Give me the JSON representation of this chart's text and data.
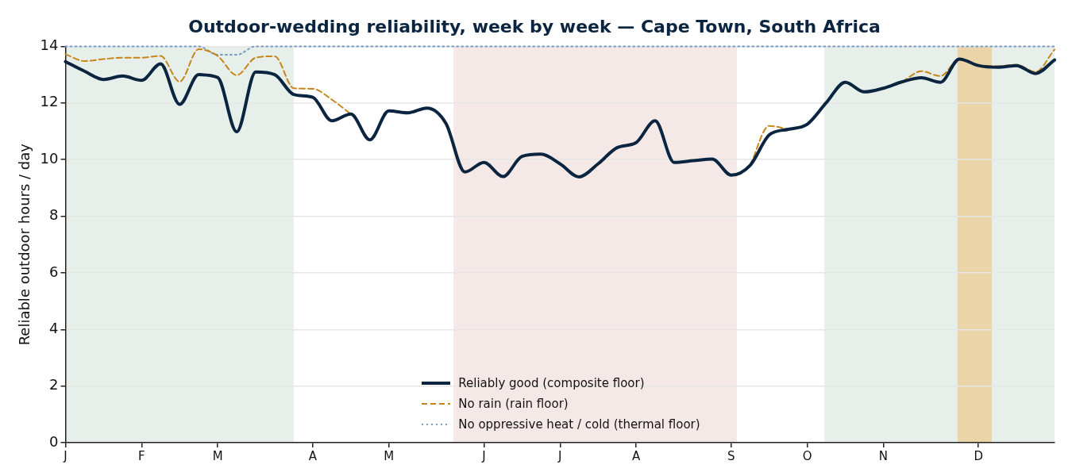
{
  "chart_data": {
    "type": "line",
    "title": "Outdoor-wedding reliability, week by week — Cape Town, South Africa",
    "ylabel": "Reliable outdoor hours / day",
    "categories": [
      "J",
      null,
      null,
      null,
      "F",
      null,
      null,
      null,
      "M",
      null,
      null,
      null,
      null,
      "A",
      null,
      null,
      null,
      "M",
      null,
      null,
      null,
      null,
      "J",
      null,
      null,
      null,
      "J",
      null,
      null,
      null,
      "A",
      null,
      null,
      null,
      null,
      "S",
      null,
      null,
      null,
      "O",
      null,
      null,
      null,
      "N",
      null,
      null,
      null,
      null,
      "D",
      null,
      null,
      null,
      null
    ],
    "ylim": [
      0,
      14
    ],
    "yticks": [
      0,
      2,
      4,
      6,
      8,
      10,
      12,
      14
    ],
    "grid": "y",
    "legend": "bottom",
    "series": [
      {
        "name": "Reliably good (composite floor)",
        "color": "#0b2540",
        "line_style": "solid",
        "values": [
          13.46,
          13.12,
          12.83,
          12.95,
          12.8,
          13.38,
          11.95,
          13.0,
          12.9,
          10.98,
          13.09,
          13.0,
          12.3,
          12.2,
          11.37,
          11.61,
          10.7,
          11.72,
          11.65,
          11.82,
          11.28,
          9.56,
          9.9,
          9.4,
          10.11,
          10.19,
          9.85,
          9.39,
          9.85,
          10.42,
          10.6,
          11.37,
          9.9,
          9.96,
          10.02,
          9.45,
          9.8,
          10.87,
          11.07,
          11.25,
          12.01,
          12.73,
          12.39,
          12.52,
          12.75,
          12.89,
          12.73,
          13.55,
          13.32,
          13.26,
          13.32,
          13.04,
          13.52
        ]
      },
      {
        "name": "No rain (rain floor)",
        "color": "#c8861a",
        "line_style": "dashed",
        "values": [
          13.72,
          13.48,
          13.55,
          13.6,
          13.6,
          13.66,
          12.75,
          13.9,
          13.66,
          12.98,
          13.6,
          13.65,
          12.52,
          12.5,
          12.12,
          11.61,
          null,
          null,
          null,
          null,
          null,
          null,
          null,
          null,
          null,
          null,
          null,
          null,
          null,
          null,
          null,
          null,
          null,
          null,
          null,
          null,
          9.8,
          11.19,
          11.07,
          null,
          null,
          null,
          null,
          null,
          12.75,
          13.12,
          12.95,
          13.55,
          13.32,
          13.3,
          13.35,
          13.1,
          13.89
        ]
      },
      {
        "name": "No oppressive heat / cold (thermal floor)",
        "color": "#7a9cc0",
        "line_style": "dotted",
        "values": [
          14,
          14,
          14,
          14,
          14,
          14,
          14,
          14,
          13.7,
          13.7,
          14,
          14,
          14,
          14,
          14,
          14,
          14,
          14,
          14,
          14,
          14,
          14,
          14,
          14,
          14,
          14,
          14,
          14,
          14,
          14,
          14,
          14,
          14,
          14,
          14,
          14,
          14,
          14,
          14,
          14,
          14,
          14,
          14,
          14,
          14,
          14,
          14,
          14,
          14,
          14,
          14,
          14,
          14
        ]
      }
    ]
  }
}
